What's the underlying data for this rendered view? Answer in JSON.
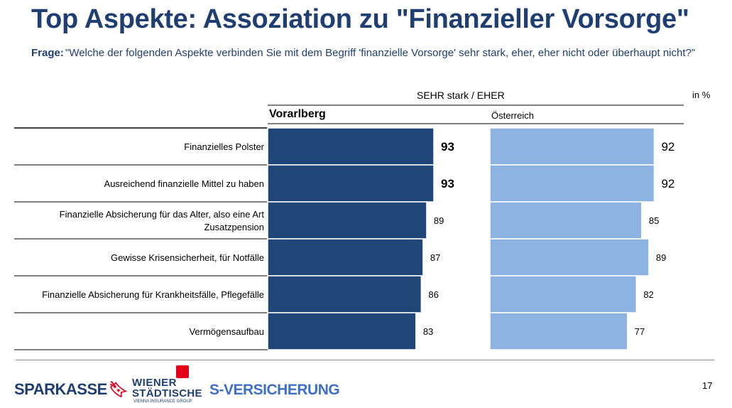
{
  "title": "Top Aspekte: Assoziation zu \"Finanzieller Vorsorge\"",
  "question_label": "Frage:",
  "question_text": "\"Welche der folgenden Aspekte verbinden Sie mit dem Begriff 'finanzielle Vorsorge' sehr stark, eher, eher nicht oder überhaupt nicht?\"",
  "header_measure": "SEHR stark / EHER",
  "header_unit": "in %",
  "footer": {
    "logo_sparkasse": "SPARKASSE",
    "logo_ws_line1": "WIENER",
    "logo_ws_line2": "STÄDTISCHE",
    "logo_ws_line3": "VIENNA INSURANCE GROUP",
    "logo_sv": "S-VERSICHERUNG",
    "page_number": "17"
  },
  "colors": {
    "title": "#1f3f73",
    "vorarlberg": "#1f4677",
    "oesterreich": "#8db3e2"
  },
  "chart_data": {
    "type": "bar",
    "orientation": "horizontal",
    "categories": [
      "Finanzielles Polster",
      "Ausreichend finanzielle Mittel zu haben",
      "Finanzielle Absicherung für das Alter, also eine Art Zusatzpension",
      "Gewisse Krisensicherheit, für Notfälle",
      "Finanzielle Absicherung für Krankheitsfälle, Pflegefälle",
      "Vermögensaufbau"
    ],
    "series": [
      {
        "name": "Vorarlberg",
        "values": [
          93,
          93,
          89,
          87,
          86,
          83
        ],
        "bold_labels": [
          true,
          true,
          false,
          false,
          false,
          false
        ]
      },
      {
        "name": "Österreich",
        "values": [
          92,
          92,
          85,
          89,
          82,
          77
        ],
        "large_labels": [
          true,
          true,
          false,
          false,
          false,
          false
        ]
      }
    ],
    "xlim": [
      0,
      100
    ]
  }
}
